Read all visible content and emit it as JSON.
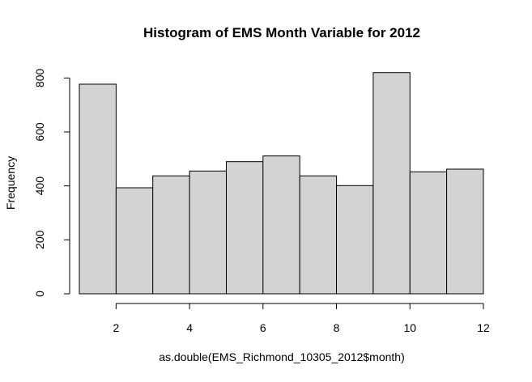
{
  "chart_data": {
    "type": "bar",
    "title": "Histogram of EMS Month Variable for 2012",
    "xlabel": "as.double(EMS_Richmond_10305_2012$month)",
    "ylabel": "Frequency",
    "bins": [
      {
        "x0": 1,
        "x1": 2,
        "value": 777
      },
      {
        "x0": 2,
        "x1": 3,
        "value": 393
      },
      {
        "x0": 3,
        "x1": 4,
        "value": 437
      },
      {
        "x0": 4,
        "x1": 5,
        "value": 455
      },
      {
        "x0": 5,
        "x1": 6,
        "value": 490
      },
      {
        "x0": 6,
        "x1": 7,
        "value": 511
      },
      {
        "x0": 7,
        "x1": 8,
        "value": 437
      },
      {
        "x0": 8,
        "x1": 9,
        "value": 401
      },
      {
        "x0": 9,
        "x1": 10,
        "value": 820
      },
      {
        "x0": 10,
        "x1": 11,
        "value": 452
      },
      {
        "x0": 11,
        "x1": 12,
        "value": 462
      }
    ],
    "xlim": [
      1,
      12
    ],
    "ylim": [
      0,
      820
    ],
    "x_ticks": [
      2,
      4,
      6,
      8,
      10,
      12
    ],
    "y_ticks": [
      0,
      200,
      400,
      600,
      800
    ],
    "x_tick_labels": [
      "2",
      "4",
      "6",
      "8",
      "10",
      "12"
    ],
    "y_tick_labels": [
      "0",
      "200",
      "400",
      "600",
      "800"
    ],
    "bar_fill": "#d3d3d3",
    "bar_stroke": "#000000",
    "grid": false,
    "legend": "none"
  }
}
